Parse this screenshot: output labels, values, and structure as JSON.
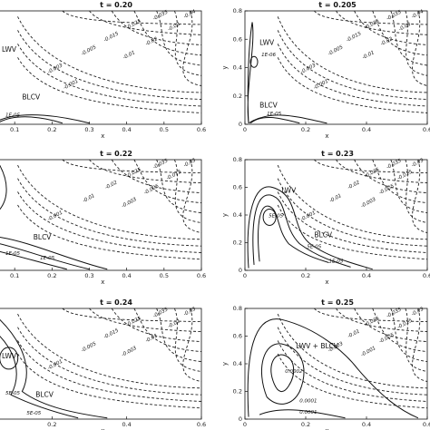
{
  "chart_data": [
    {
      "type": "contour",
      "title": "t = 0.20",
      "xlabel": "x",
      "ylabel": "",
      "xlim": [
        0,
        0.6
      ],
      "ylim": [
        0,
        0.8
      ],
      "xticks": [
        "0.1",
        "0.2",
        "0.3",
        "0.4",
        "0.5",
        "0.6"
      ],
      "yticks": [],
      "regions": [
        "LWV",
        "BLCV"
      ],
      "dashed_levels": [
        "-0.035",
        "-0.04",
        "-0.025",
        "-0.03",
        "-0.015",
        "-0.02",
        "-0.005",
        "-0.01",
        "-0.003",
        "-0.001"
      ],
      "solid_levels": [
        "1E-05"
      ]
    },
    {
      "type": "contour",
      "title": "t = 0.205",
      "xlabel": "x",
      "ylabel": "y",
      "xlim": [
        0,
        0.6
      ],
      "ylim": [
        0,
        0.8
      ],
      "xticks": [
        "0",
        "0.2",
        "0.4",
        "0.6"
      ],
      "yticks": [
        "0",
        "0.2",
        "0.4",
        "0.6",
        "0.8"
      ],
      "regions": [
        "LWV",
        "BLCV"
      ],
      "dashed_levels": [
        "-0.035",
        "-0.04",
        "-0.025",
        "-0.03",
        "-0.015",
        "-0.02",
        "-0.005",
        "-0.01",
        "-0.003",
        "-0.001"
      ],
      "solid_levels": [
        "1E-06",
        "1E-05"
      ]
    },
    {
      "type": "contour",
      "title": "t = 0.22",
      "xlabel": "x",
      "ylabel": "",
      "xlim": [
        0,
        0.6
      ],
      "ylim": [
        0,
        0.8
      ],
      "xticks": [
        "0.1",
        "0.2",
        "0.3",
        "0.4",
        "0.5",
        "0.6"
      ],
      "yticks": [],
      "regions": [
        "BLCV"
      ],
      "dashed_levels": [
        "-0.035",
        "-0.03",
        "-0.025",
        "-0.015",
        "-0.02",
        "-0.005",
        "-0.01",
        "-0.003",
        "-0.001"
      ],
      "solid_levels": [
        "1E-05",
        "1E-05"
      ]
    },
    {
      "type": "contour",
      "title": "t = 0.23",
      "xlabel": "x",
      "ylabel": "y",
      "xlim": [
        0,
        0.6
      ],
      "ylim": [
        0,
        0.8
      ],
      "xticks": [
        "0",
        "0.2",
        "0.4",
        "0.6"
      ],
      "yticks": [
        "0",
        "0.2",
        "0.4",
        "0.6",
        "0.8"
      ],
      "regions": [
        "LWV",
        "BLCV"
      ],
      "dashed_levels": [
        "-0.035",
        "-0.03",
        "-0.025",
        "-0.015",
        "-0.02",
        "-0.005",
        "-0.01",
        "-0.003",
        "-0.001"
      ],
      "solid_levels": [
        "5E-05",
        "5E-05",
        "1E-05"
      ]
    },
    {
      "type": "contour",
      "title": "t = 0.24",
      "xlabel": "x",
      "ylabel": "",
      "xlim": [
        0,
        0.6
      ],
      "ylim": [
        0,
        0.8
      ],
      "xticks": [
        "0.2",
        "0.4",
        "0.6"
      ],
      "yticks": [],
      "regions": [
        "LWV",
        "BLCV"
      ],
      "dashed_levels": [
        "-0.035",
        "-0.03",
        "-0.025",
        "-0.02",
        "-0.015",
        "-0.01",
        "-0.005",
        "-0.003",
        "-0.001"
      ],
      "solid_levels": [
        "5E-05",
        "5E-05"
      ]
    },
    {
      "type": "contour",
      "title": "t = 0.25",
      "xlabel": "x",
      "ylabel": "y",
      "xlim": [
        0,
        0.6
      ],
      "ylim": [
        0,
        0.8
      ],
      "xticks": [
        "0",
        "0.2",
        "0.4",
        "0.6"
      ],
      "yticks": [
        "0",
        "0.2",
        "0.4",
        "0.6",
        "0.8"
      ],
      "regions": [
        "LWV + BLCV"
      ],
      "dashed_levels": [
        "-0.035",
        "-0.03",
        "-0.025",
        "-0.015",
        "-0.01",
        "-0.005",
        "-0.003",
        "-0.001"
      ],
      "solid_levels": [
        "0.0002",
        "0.0001",
        "0.0001"
      ]
    }
  ]
}
